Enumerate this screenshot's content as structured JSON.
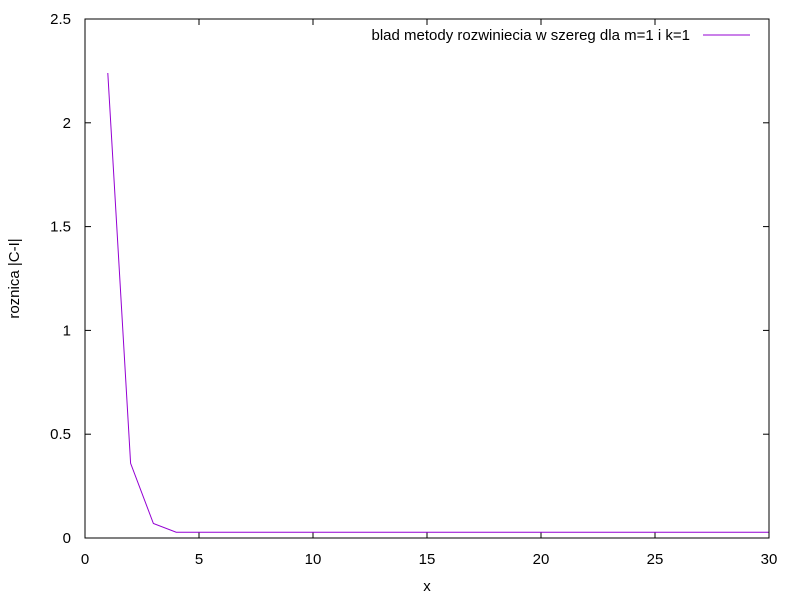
{
  "chart_data": {
    "type": "line",
    "title": "",
    "xlabel": "x",
    "ylabel": "roznica |C-I|",
    "xlim": [
      0,
      30
    ],
    "ylim": [
      0,
      2.5
    ],
    "xticks": [
      0,
      5,
      10,
      15,
      20,
      25,
      30
    ],
    "yticks": [
      0,
      0.5,
      1,
      1.5,
      2,
      2.5
    ],
    "xtick_labels": [
      "0",
      "5",
      "10",
      "15",
      "20",
      "25",
      "30"
    ],
    "ytick_labels": [
      "0",
      "0.5",
      "1",
      "1.5",
      "2",
      "2.5"
    ],
    "grid": false,
    "legend_position": "top-right",
    "series": [
      {
        "name": "blad metody rozwiniecia w szereg dla m=1 i k=1",
        "color": "#9400d3",
        "x": [
          1,
          2,
          3,
          4,
          5,
          6,
          7,
          8,
          9,
          10,
          11,
          12,
          13,
          14,
          15,
          16,
          17,
          18,
          19,
          20,
          21,
          22,
          23,
          24,
          25,
          26,
          27,
          28,
          29,
          30
        ],
        "y": [
          2.24,
          0.36,
          0.07,
          0.028,
          0.028,
          0.028,
          0.028,
          0.028,
          0.028,
          0.028,
          0.028,
          0.028,
          0.028,
          0.028,
          0.028,
          0.028,
          0.028,
          0.028,
          0.028,
          0.028,
          0.028,
          0.028,
          0.028,
          0.028,
          0.028,
          0.028,
          0.028,
          0.028,
          0.028,
          0.028
        ]
      }
    ]
  }
}
